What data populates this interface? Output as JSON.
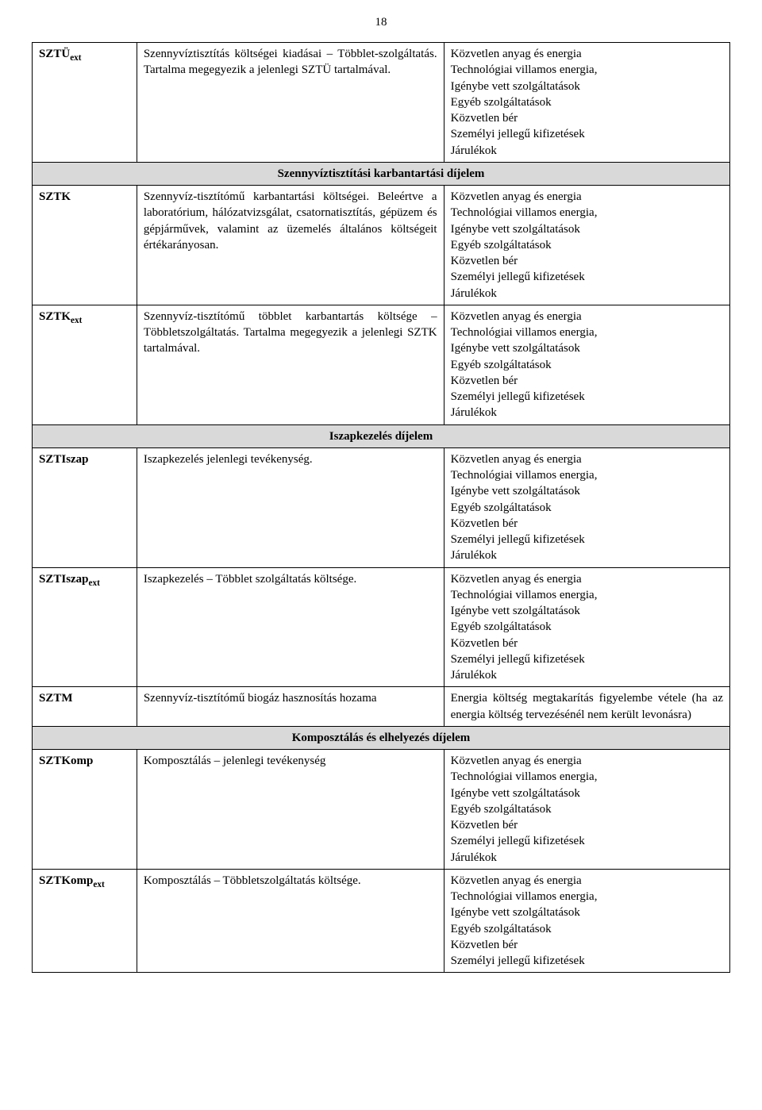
{
  "pageNumber": "18",
  "costLines": {
    "l1": "Közvetlen anyag és energia",
    "l2": "Technológiai villamos energia,",
    "l3": "Igénybe vett szolgáltatások",
    "l4": "Egyéb szolgáltatások",
    "l5": "Közvetlen bér",
    "l6": "Személyi jellegű kifizetések",
    "l7": "Járulékok"
  },
  "sections": {
    "s1": "Szennyvíztisztítási karbantartási díjelem",
    "s2": "Iszapkezelés díjelem",
    "s3": "Komposztálás és elhelyezés díjelem"
  },
  "rows": {
    "sztuext": {
      "code": "SZTÜ",
      "sub": "ext",
      "desc": "Szennyvíztisztítás költségei kiadásai – Többlet-szolgáltatás.\nTartalma megegyezik a jelenlegi SZTÜ tartalmával."
    },
    "sztk": {
      "code": "SZTK",
      "desc": "Szennyvíz-tisztítómű karbantartási költségei. Beleértve a laboratórium, hálózatvizsgálat, csatornatisztítás, gépüzem és gépjárművek, valamint az üzemelés általános költségeit értékarányosan."
    },
    "sztkext": {
      "code": "SZTK",
      "sub": "ext",
      "desc": "Szennyvíz-tisztítómű többlet karbantartás költsége – Többletszolgáltatás.\nTartalma megegyezik a jelenlegi SZTK tartalmával."
    },
    "sztiszap": {
      "code": "SZTIszap",
      "desc": "Iszapkezelés jelenlegi tevékenység."
    },
    "sztiszapext": {
      "code": "SZTIszap",
      "sub": "ext",
      "desc": "Iszapkezelés – Többlet szolgáltatás költsége."
    },
    "sztm": {
      "code": "SZTM",
      "desc": "Szennyvíz-tisztítómű biogáz hasznosítás hozama",
      "right": "Energia költség megtakarítás figyelembe vétele (ha az energia költség tervezésénél nem került levonásra)"
    },
    "sztkomp": {
      "code": "SZTKomp",
      "desc": "Komposztálás – jelenlegi tevékenység"
    },
    "sztkompext": {
      "code": "SZTKomp",
      "sub": "ext",
      "desc": "Komposztálás – Többletszolgáltatás költsége."
    }
  }
}
